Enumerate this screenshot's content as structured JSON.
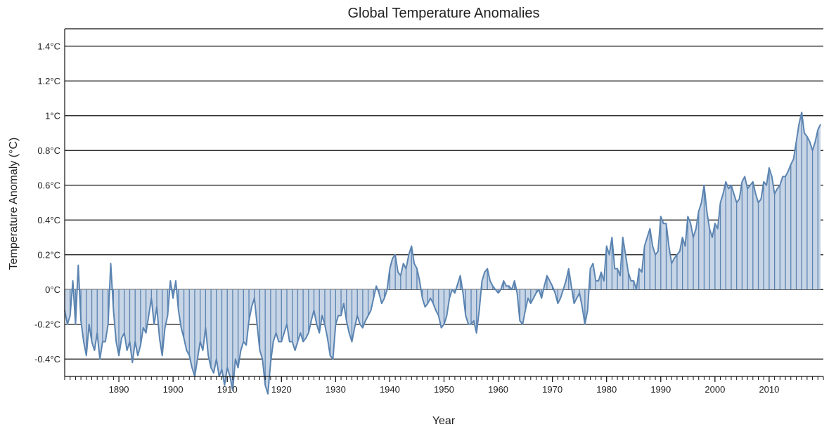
{
  "chart_data": {
    "type": "area",
    "title": "Global Temperature Anomalies",
    "xlabel": "Year",
    "ylabel": "Temperature Anomaly (°C)",
    "xlim": [
      1880,
      2020
    ],
    "ylim": [
      -0.5,
      1.5
    ],
    "x_ticks": [
      {
        "value": 1890,
        "label": "1890"
      },
      {
        "value": 1900,
        "label": "1900"
      },
      {
        "value": 1910,
        "label": "1910"
      },
      {
        "value": 1920,
        "label": "1920"
      },
      {
        "value": 1930,
        "label": "1930"
      },
      {
        "value": 1940,
        "label": "1940"
      },
      {
        "value": 1950,
        "label": "1950"
      },
      {
        "value": 1960,
        "label": "1960"
      },
      {
        "value": 1970,
        "label": "1970"
      },
      {
        "value": 1980,
        "label": "1980"
      },
      {
        "value": 1990,
        "label": "1990"
      },
      {
        "value": 2000,
        "label": "2000"
      },
      {
        "value": 2010,
        "label": "2010"
      }
    ],
    "y_ticks": [
      {
        "value": -0.4,
        "label": "-0.4°C"
      },
      {
        "value": -0.2,
        "label": "-0.2°C"
      },
      {
        "value": 0,
        "label": "0°C"
      },
      {
        "value": 0.2,
        "label": "0.2°C"
      },
      {
        "value": 0.4,
        "label": "0.4°C"
      },
      {
        "value": 0.6,
        "label": "0.6°C"
      },
      {
        "value": 0.8,
        "label": "0.8°C"
      },
      {
        "value": 1.0,
        "label": "1°C"
      },
      {
        "value": 1.2,
        "label": "1.2°C"
      },
      {
        "value": 1.4,
        "label": "1.4°C"
      }
    ],
    "grid": "horizontal",
    "line_color": "#5b84b1",
    "fill_color": "#c7d5e6",
    "baseline": 0,
    "series": [
      {
        "x": [
          1880,
          1880.5,
          1881,
          1881.5,
          1882,
          1882.5,
          1883,
          1883.5,
          1884,
          1884.5,
          1885,
          1885.5,
          1886,
          1886.5,
          1887,
          1887.5,
          1888,
          1888.5,
          1889,
          1889.5,
          1890,
          1890.5,
          1891,
          1891.5,
          1892,
          1892.5,
          1893,
          1893.5,
          1894,
          1894.5,
          1895,
          1895.5,
          1896,
          1896.5,
          1897,
          1897.5,
          1898,
          1898.5,
          1899,
          1899.5,
          1900,
          1900.5,
          1901,
          1901.5,
          1902,
          1902.5,
          1903,
          1903.5,
          1904,
          1904.5,
          1905,
          1905.5,
          1906,
          1906.5,
          1907,
          1907.5,
          1908,
          1908.5,
          1909,
          1909.5,
          1910,
          1910.5,
          1911,
          1911.5,
          1912,
          1912.5,
          1913,
          1913.5,
          1914,
          1914.5,
          1915,
          1915.5,
          1916,
          1916.5,
          1917,
          1917.5,
          1918,
          1918.5,
          1919,
          1919.5,
          1920,
          1920.5,
          1921,
          1921.5,
          1922,
          1922.5,
          1923,
          1923.5,
          1924,
          1924.5,
          1925,
          1925.5,
          1926,
          1926.5,
          1927,
          1927.5,
          1928,
          1928.5,
          1929,
          1929.5,
          1930,
          1930.5,
          1931,
          1931.5,
          1932,
          1932.5,
          1933,
          1933.5,
          1934,
          1934.5,
          1935,
          1935.5,
          1936,
          1936.5,
          1937,
          1937.5,
          1938,
          1938.5,
          1939,
          1939.5,
          1940,
          1940.5,
          1941,
          1941.5,
          1942,
          1942.5,
          1943,
          1943.5,
          1944,
          1944.5,
          1945,
          1945.5,
          1946,
          1946.5,
          1947,
          1947.5,
          1948,
          1948.5,
          1949,
          1949.5,
          1950,
          1950.5,
          1951,
          1951.5,
          1952,
          1952.5,
          1953,
          1953.5,
          1954,
          1954.5,
          1955,
          1955.5,
          1956,
          1956.5,
          1957,
          1957.5,
          1958,
          1958.5,
          1959,
          1959.5,
          1960,
          1960.5,
          1961,
          1961.5,
          1962,
          1962.5,
          1963,
          1963.5,
          1964,
          1964.5,
          1965,
          1965.5,
          1966,
          1966.5,
          1967,
          1967.5,
          1968,
          1968.5,
          1969,
          1969.5,
          1970,
          1970.5,
          1971,
          1971.5,
          1972,
          1972.5,
          1973,
          1973.5,
          1974,
          1974.5,
          1975,
          1975.5,
          1976,
          1976.5,
          1977,
          1977.5,
          1978,
          1978.5,
          1979,
          1979.5,
          1980,
          1980.5,
          1981,
          1981.5,
          1982,
          1982.5,
          1983,
          1983.5,
          1984,
          1984.5,
          1985,
          1985.5,
          1986,
          1986.5,
          1987,
          1987.5,
          1988,
          1988.5,
          1989,
          1989.5,
          1990,
          1990.5,
          1991,
          1991.5,
          1992,
          1992.5,
          1993,
          1993.5,
          1994,
          1994.5,
          1995,
          1995.5,
          1996,
          1996.5,
          1997,
          1997.5,
          1998,
          1998.5,
          1999,
          1999.5,
          2000,
          2000.5,
          2001,
          2001.5,
          2002,
          2002.5,
          2003,
          2003.5,
          2004,
          2004.5,
          2005,
          2005.5,
          2006,
          2006.5,
          2007,
          2007.5,
          2008,
          2008.5,
          2009,
          2009.5,
          2010,
          2010.5,
          2011,
          2011.5,
          2012,
          2012.5,
          2013,
          2013.5,
          2014,
          2014.5,
          2015,
          2015.5,
          2016,
          2016.5,
          2017,
          2017.5,
          2018,
          2018.5,
          2019,
          2019.5
        ],
        "y": [
          -0.12,
          -0.2,
          -0.15,
          0.05,
          -0.2,
          0.14,
          -0.18,
          -0.3,
          -0.38,
          -0.2,
          -0.3,
          -0.35,
          -0.25,
          -0.4,
          -0.3,
          -0.3,
          -0.2,
          0.15,
          -0.12,
          -0.3,
          -0.38,
          -0.28,
          -0.25,
          -0.35,
          -0.3,
          -0.42,
          -0.3,
          -0.38,
          -0.32,
          -0.22,
          -0.25,
          -0.15,
          -0.05,
          -0.2,
          -0.1,
          -0.28,
          -0.38,
          -0.22,
          -0.15,
          0.05,
          -0.05,
          0.05,
          -0.12,
          -0.22,
          -0.28,
          -0.35,
          -0.38,
          -0.45,
          -0.5,
          -0.4,
          -0.3,
          -0.35,
          -0.22,
          -0.38,
          -0.45,
          -0.48,
          -0.4,
          -0.5,
          -0.46,
          -0.55,
          -0.45,
          -0.5,
          -0.58,
          -0.4,
          -0.45,
          -0.35,
          -0.3,
          -0.32,
          -0.18,
          -0.1,
          -0.05,
          -0.2,
          -0.35,
          -0.4,
          -0.55,
          -0.6,
          -0.42,
          -0.3,
          -0.25,
          -0.3,
          -0.3,
          -0.25,
          -0.2,
          -0.3,
          -0.3,
          -0.35,
          -0.3,
          -0.25,
          -0.3,
          -0.28,
          -0.25,
          -0.18,
          -0.12,
          -0.2,
          -0.25,
          -0.15,
          -0.2,
          -0.28,
          -0.38,
          -0.4,
          -0.2,
          -0.15,
          -0.15,
          -0.08,
          -0.18,
          -0.25,
          -0.3,
          -0.22,
          -0.15,
          -0.2,
          -0.22,
          -0.18,
          -0.15,
          -0.12,
          -0.05,
          0.02,
          -0.02,
          -0.08,
          -0.05,
          0.0,
          0.12,
          0.18,
          0.2,
          0.1,
          0.08,
          0.15,
          0.12,
          0.2,
          0.25,
          0.15,
          0.12,
          0.05,
          -0.05,
          -0.1,
          -0.08,
          -0.05,
          -0.08,
          -0.12,
          -0.15,
          -0.22,
          -0.2,
          -0.15,
          -0.05,
          0.0,
          -0.02,
          0.03,
          0.08,
          -0.02,
          -0.15,
          -0.2,
          -0.2,
          -0.18,
          -0.25,
          -0.12,
          0.05,
          0.1,
          0.12,
          0.05,
          0.02,
          0.0,
          -0.02,
          0.0,
          0.05,
          0.02,
          0.02,
          0.0,
          0.05,
          -0.02,
          -0.18,
          -0.2,
          -0.12,
          -0.05,
          -0.08,
          -0.05,
          -0.02,
          0.0,
          -0.05,
          0.02,
          0.08,
          0.05,
          0.02,
          -0.02,
          -0.08,
          -0.05,
          0.0,
          0.05,
          0.12,
          0.02,
          -0.08,
          -0.05,
          -0.02,
          -0.1,
          -0.2,
          -0.12,
          0.12,
          0.15,
          0.05,
          0.05,
          0.1,
          0.05,
          0.25,
          0.2,
          0.3,
          0.12,
          0.12,
          0.08,
          0.3,
          0.2,
          0.1,
          0.05,
          0.05,
          0.0,
          0.12,
          0.1,
          0.25,
          0.3,
          0.35,
          0.25,
          0.2,
          0.22,
          0.42,
          0.38,
          0.38,
          0.25,
          0.15,
          0.18,
          0.2,
          0.22,
          0.3,
          0.25,
          0.42,
          0.38,
          0.3,
          0.35,
          0.45,
          0.5,
          0.6,
          0.45,
          0.35,
          0.3,
          0.38,
          0.35,
          0.5,
          0.55,
          0.62,
          0.58,
          0.6,
          0.55,
          0.5,
          0.52,
          0.62,
          0.65,
          0.58,
          0.6,
          0.62,
          0.55,
          0.5,
          0.52,
          0.62,
          0.6,
          0.7,
          0.65,
          0.55,
          0.58,
          0.6,
          0.65,
          0.65,
          0.68,
          0.72,
          0.75,
          0.85,
          0.95,
          1.02,
          0.9,
          0.88,
          0.85,
          0.8,
          0.85,
          0.92,
          0.95
        ]
      }
    ]
  }
}
